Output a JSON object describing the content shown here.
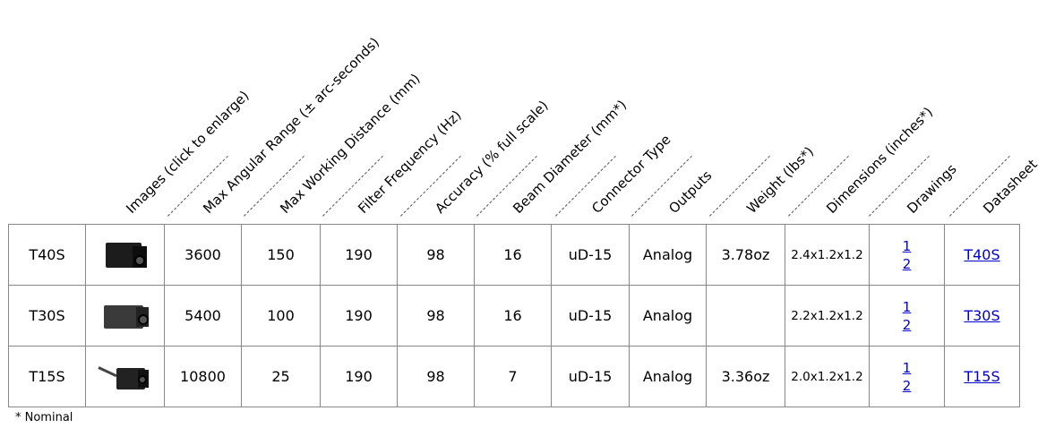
{
  "headers": [
    "Images (click to enlarge)",
    "Max Angular Range (± arc-seconds)",
    "Max Working Distance (mm)",
    "Filter Frequency (Hz)",
    "Accuracy (% full scale)",
    "Beam Diameter (mm*)",
    "Connector Type",
    "Outputs",
    "Weight (lbs*)",
    "Dimensions (inches*)",
    "Drawings",
    "Datasheet"
  ],
  "rows": [
    {
      "model": "T40S",
      "image": "sensor-t40s",
      "angular_range": "3600",
      "working_distance": "150",
      "filter_frequency": "190",
      "accuracy": "98",
      "beam_diameter": "16",
      "connector": "uD-15",
      "outputs": "Analog",
      "weight": "3.78oz",
      "dimensions": "2.4x1.2x1.2",
      "drawing_1": "1",
      "drawing_2": "2",
      "datasheet": "T40S"
    },
    {
      "model": "T30S",
      "image": "sensor-t30s",
      "angular_range": "5400",
      "working_distance": "100",
      "filter_frequency": "190",
      "accuracy": "98",
      "beam_diameter": "16",
      "connector": "uD-15",
      "outputs": "Analog",
      "weight": "",
      "dimensions": "2.2x1.2x1.2",
      "drawing_1": "1",
      "drawing_2": "2",
      "datasheet": "T30S"
    },
    {
      "model": "T15S",
      "image": "sensor-t15s",
      "angular_range": "10800",
      "working_distance": "25",
      "filter_frequency": "190",
      "accuracy": "98",
      "beam_diameter": "7",
      "connector": "uD-15",
      "outputs": "Analog",
      "weight": "3.36oz",
      "dimensions": "2.0x1.2x1.2",
      "drawing_1": "1",
      "drawing_2": "2",
      "datasheet": "T15S"
    }
  ],
  "footnote": "* Nominal",
  "colors": {
    "link": "#0000cc",
    "border": "#888888"
  }
}
